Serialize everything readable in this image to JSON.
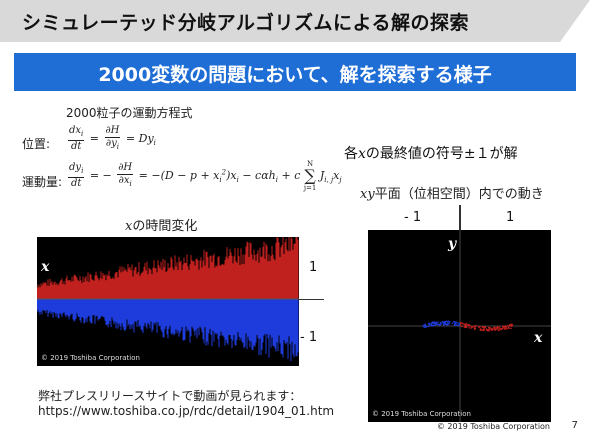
{
  "header": {
    "title": "シミュレーテッド分岐アルゴリズムによる解の探索"
  },
  "banner": {
    "text": "2000変数の問題において、解を探索する様子"
  },
  "equations": {
    "heading": "2000粒子の運動方程式",
    "position_label": "位置:",
    "momentum_label": "運動量:",
    "position_eq_rhs": "= Dy",
    "momentum_eq_rhs": "= −(D − p + x",
    "momentum_eq_tail": ")x",
    "momentum_eq_tail2": " − cαh",
    "momentum_eq_tail3": " + c",
    "sum_top": "N",
    "sum_bottom": "j=1",
    "sum_term": "J",
    "sum_sub": "i, j",
    "sum_x": "x",
    "sub_i": "i",
    "sub_j": "j",
    "sup_2": "2",
    "dx": "dx",
    "dy": "dy",
    "dt": "dt",
    "dH": "∂H",
    "dyi": "∂y",
    "dxi": "∂x",
    "minus": "= −"
  },
  "solution_note": {
    "prefix": "各",
    "var": "x",
    "suffix": "の最終値の符号±１が解"
  },
  "chart_time": {
    "title_var": "x",
    "title_suffix": "の時間変化",
    "axis_var": "x",
    "label_pos": "1",
    "label_neg": "- 1",
    "watermark": "© 2019 Toshiba Corporation"
  },
  "chart_phase": {
    "title_var": "xy",
    "title_suffix": "平面（位相空間）内での動き",
    "label_neg": "- 1",
    "label_pos": "1",
    "axis_y": "y",
    "axis_x": "x",
    "watermark": "© 2019 Toshiba Corporation"
  },
  "footer": {
    "line1": "弊社プレスリリースサイトで動画が見られます：",
    "line2": "https://www.toshiba.co.jp/rdc/detail/1904_01.htm"
  },
  "page": {
    "copyright": "© 2019 Toshiba Corporation",
    "number": "7"
  },
  "colors": {
    "banner": "#1f6ed6",
    "titlebar": "#d9d9d9",
    "red_series": "#c0201e",
    "blue_series": "#1e3cdc",
    "arrow": "#1f6ed6"
  }
}
